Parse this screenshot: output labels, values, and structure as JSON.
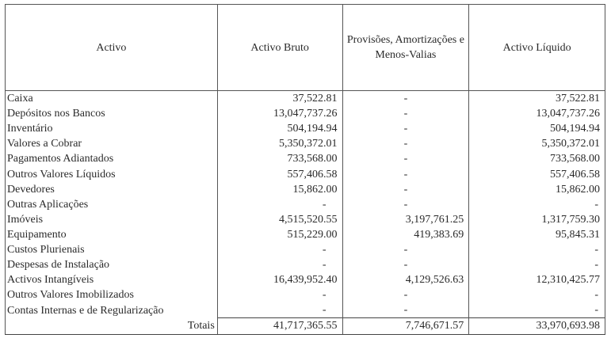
{
  "headers": [
    "Activo",
    "Activo Bruto",
    "Provisões, Amortizações e Menos-Valias",
    "Activo Líquido"
  ],
  "rows": [
    [
      "Caixa",
      "37,522.81",
      "-",
      "37,522.81"
    ],
    [
      "Depósitos nos Bancos",
      "13,047,737.26",
      "-",
      "13,047,737.26"
    ],
    [
      "Inventário",
      "504,194.94",
      "-",
      "504,194.94"
    ],
    [
      "Valores a Cobrar",
      "5,350,372.01",
      "-",
      "5,350,372.01"
    ],
    [
      "Pagamentos Adiantados",
      "733,568.00",
      "-",
      "733,568.00"
    ],
    [
      "Outros Valores Líquidos",
      "557,406.58",
      "-",
      "557,406.58"
    ],
    [
      "Devedores",
      "15,862.00",
      "-",
      "15,862.00"
    ],
    [
      "Outras Aplicações",
      "-",
      "-",
      "-"
    ],
    [
      "Imóveis",
      "4,515,520.55",
      "3,197,761.25",
      "1,317,759.30"
    ],
    [
      "Equipamento",
      "515,229.00",
      "419,383.69",
      "95,845.31"
    ],
    [
      "Custos Plurienais",
      "-",
      "-",
      "-"
    ],
    [
      "Despesas de Instalação",
      "-",
      "-",
      "-"
    ],
    [
      "Activos Intangíveis",
      "16,439,952.40",
      "4,129,526.63",
      "12,310,425.77"
    ],
    [
      "Outros Valores Imobilizados",
      "-",
      "-",
      "-"
    ],
    [
      "Contas Internas e de Regularização",
      "-",
      "-",
      "-"
    ]
  ],
  "totals": [
    "Totais",
    "41,717,365.55",
    "7,746,671.57",
    "33,970,693.98"
  ]
}
